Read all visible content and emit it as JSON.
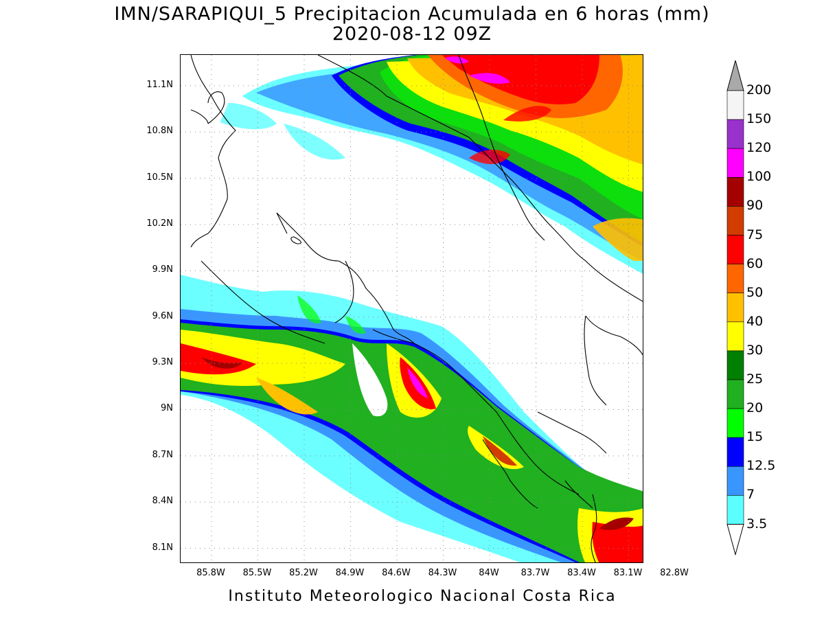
{
  "title_line1": "IMN/SARAPIQUI_5 Precipitacion Acumulada en 6 horas (mm)",
  "title_line2": "2020-08-12 09Z",
  "footer": "Instituto Meteorologico Nacional Costa Rica",
  "map": {
    "lat_labels": [
      "11.1N",
      "10.8N",
      "10.5N",
      "10.2N",
      "9.9N",
      "9.6N",
      "9.3N",
      "9N",
      "8.7N",
      "8.4N",
      "8.1N"
    ],
    "lon_labels": [
      "85.8W",
      "85.5W",
      "85.2W",
      "84.9W",
      "84.6W",
      "84.3W",
      "84W",
      "83.7W",
      "83.4W",
      "83.1W",
      "82.8W"
    ],
    "lat_values": [
      11.1,
      10.8,
      10.5,
      10.2,
      9.9,
      9.6,
      9.3,
      9.0,
      8.7,
      8.4,
      8.1
    ],
    "lon_values": [
      -85.8,
      -85.5,
      -85.2,
      -84.9,
      -84.6,
      -84.3,
      -84.0,
      -83.7,
      -83.4,
      -83.1,
      -82.8
    ],
    "lat_range": [
      8.0,
      11.3
    ],
    "lon_range": [
      -86.0,
      -83.0
    ],
    "variable": "precipitation_6h_mm"
  },
  "legend": {
    "levels": [
      "200",
      "150",
      "120",
      "100",
      "90",
      "75",
      "60",
      "50",
      "40",
      "30",
      "25",
      "20",
      "15",
      "12.5",
      "7",
      "3.5"
    ],
    "colors": [
      "#a9a9a9",
      "#f5f5f5",
      "#9932cc",
      "#ff00ff",
      "#a50000",
      "#d23c00",
      "#ff0000",
      "#ff6600",
      "#ffc000",
      "#ffff00",
      "#008000",
      "#20b020",
      "#00ff00",
      "#0000ff",
      "#3a96ff",
      "#5cffff",
      "#ffffff"
    ]
  }
}
